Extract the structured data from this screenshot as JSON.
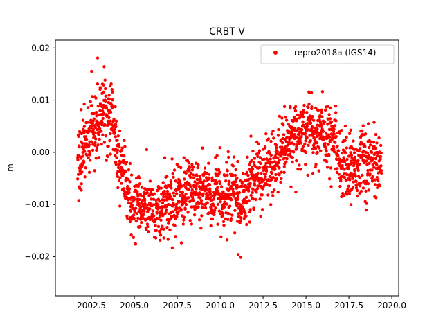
{
  "chart_data": {
    "type": "scatter",
    "title": "CRBT V",
    "xlabel": "",
    "ylabel": "m",
    "xlim": [
      2000.4,
      2020.4
    ],
    "ylim": [
      -0.0275,
      0.0215
    ],
    "x_ticks": [
      2002.5,
      2005.0,
      2007.5,
      2010.0,
      2012.5,
      2015.0,
      2017.5,
      2020.0
    ],
    "x_tick_labels": [
      "2002.5",
      "2005.0",
      "2007.5",
      "2010.0",
      "2012.5",
      "2015.0",
      "2017.5",
      "2020.0"
    ],
    "y_ticks": [
      -0.02,
      -0.01,
      0.0,
      0.01,
      0.02
    ],
    "y_tick_labels": [
      "−0.02",
      "−0.01",
      "0.00",
      "0.01",
      "0.02"
    ],
    "grid": false,
    "legend_position": "upper right",
    "series": [
      {
        "name": "repro2018a (IGS14)",
        "color": "#ff0000",
        "marker": "circle",
        "x": [
          2001.7,
          2001.8,
          2001.9,
          2002.0,
          2002.1,
          2002.2,
          2002.3,
          2002.4,
          2002.5,
          2002.6,
          2002.7,
          2002.8,
          2002.9,
          2003.0,
          2003.1,
          2003.2,
          2003.3,
          2003.4,
          2003.5,
          2003.6,
          2003.7,
          2003.8,
          2003.9,
          2004.0,
          2004.2,
          2004.4,
          2004.6,
          2004.8,
          2005.0,
          2005.2,
          2005.4,
          2005.6,
          2005.8,
          2006.0,
          2006.2,
          2006.4,
          2006.6,
          2006.8,
          2007.0,
          2007.2,
          2007.4,
          2007.6,
          2007.8,
          2008.0,
          2008.2,
          2008.4,
          2008.6,
          2008.8,
          2009.0,
          2009.2,
          2009.4,
          2009.6,
          2009.8,
          2010.0,
          2010.2,
          2010.4,
          2010.6,
          2010.8,
          2011.0,
          2011.2,
          2011.4,
          2011.6,
          2011.8,
          2012.0,
          2012.2,
          2012.4,
          2012.6,
          2012.8,
          2013.0,
          2013.2,
          2013.4,
          2013.6,
          2013.8,
          2014.0,
          2014.2,
          2014.4,
          2014.6,
          2014.8,
          2015.0,
          2015.2,
          2015.4,
          2015.6,
          2015.8,
          2016.0,
          2016.2,
          2016.4,
          2016.6,
          2016.8,
          2017.0,
          2017.2,
          2017.4,
          2017.6,
          2017.8,
          2018.0,
          2018.2,
          2018.4,
          2018.6,
          2018.8,
          2019.0,
          2019.2,
          2019.4
        ],
        "y": [
          -0.001,
          -0.003,
          0.002,
          0.0,
          0.003,
          0.001,
          0.004,
          0.002,
          0.005,
          0.006,
          0.003,
          0.007,
          0.005,
          0.008,
          0.006,
          0.009,
          0.01,
          0.007,
          0.008,
          0.006,
          0.009,
          0.005,
          0.003,
          0.0,
          -0.002,
          -0.004,
          -0.007,
          -0.009,
          -0.011,
          -0.01,
          -0.012,
          -0.009,
          -0.011,
          -0.01,
          -0.013,
          -0.009,
          -0.011,
          -0.008,
          -0.01,
          -0.009,
          -0.011,
          -0.007,
          -0.009,
          -0.008,
          -0.006,
          -0.009,
          -0.007,
          -0.008,
          -0.006,
          -0.008,
          -0.007,
          -0.009,
          -0.006,
          -0.008,
          -0.01,
          -0.007,
          -0.009,
          -0.006,
          -0.008,
          -0.011,
          -0.009,
          -0.007,
          -0.005,
          -0.006,
          -0.004,
          -0.005,
          -0.003,
          -0.002,
          -0.004,
          -0.001,
          -0.002,
          0.0,
          0.001,
          0.002,
          0.004,
          0.003,
          0.002,
          0.005,
          0.003,
          0.006,
          0.004,
          0.002,
          0.005,
          0.004,
          0.003,
          0.002,
          0.004,
          0.001,
          -0.002,
          -0.001,
          -0.003,
          -0.004,
          -0.002,
          -0.003,
          -0.001,
          -0.002,
          -0.004,
          -0.001,
          -0.002,
          -0.003,
          -0.004
        ],
        "spread": [
          0.006,
          0.006,
          0.006,
          0.006,
          0.006,
          0.006,
          0.006,
          0.006,
          0.006,
          0.006,
          0.006,
          0.006,
          0.006,
          0.006,
          0.006,
          0.006,
          0.006,
          0.006,
          0.006,
          0.006,
          0.006,
          0.006,
          0.006,
          0.005,
          0.005,
          0.005,
          0.005,
          0.005,
          0.005,
          0.005,
          0.005,
          0.005,
          0.005,
          0.005,
          0.005,
          0.005,
          0.005,
          0.005,
          0.005,
          0.005,
          0.005,
          0.005,
          0.005,
          0.005,
          0.005,
          0.005,
          0.005,
          0.005,
          0.005,
          0.005,
          0.005,
          0.005,
          0.005,
          0.005,
          0.005,
          0.005,
          0.005,
          0.005,
          0.005,
          0.005,
          0.005,
          0.005,
          0.005,
          0.005,
          0.005,
          0.005,
          0.005,
          0.005,
          0.005,
          0.005,
          0.005,
          0.005,
          0.005,
          0.005,
          0.005,
          0.005,
          0.005,
          0.005,
          0.005,
          0.005,
          0.005,
          0.005,
          0.005,
          0.005,
          0.005,
          0.005,
          0.005,
          0.005,
          0.005,
          0.005,
          0.005,
          0.005,
          0.005,
          0.005,
          0.005,
          0.005,
          0.005,
          0.005,
          0.005,
          0.005,
          0.005
        ]
      }
    ]
  }
}
